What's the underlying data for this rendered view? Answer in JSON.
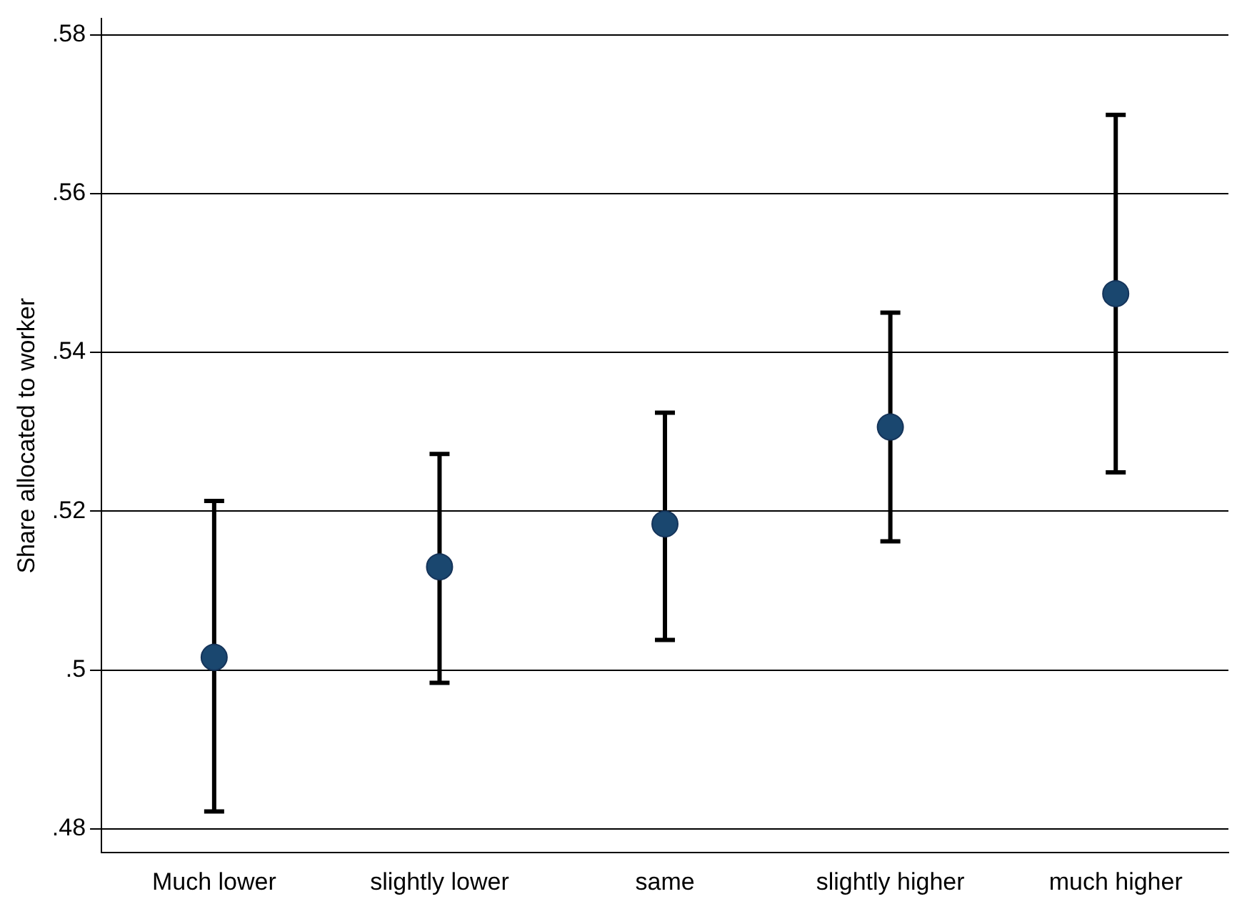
{
  "chart_data": {
    "type": "scatter",
    "ylabel": "Share allocated to worker",
    "categories": [
      "Much lower",
      "slightly lower",
      "same",
      "slightly higher",
      "much higher"
    ],
    "series": [
      {
        "color": "#1a476f",
        "values": [
          0.5016,
          0.513,
          0.5184,
          0.5306,
          0.5474
        ],
        "errors": [
          [
            0.4822,
            0.5213
          ],
          [
            0.4984,
            0.5272
          ],
          [
            0.5038,
            0.5324
          ],
          [
            0.5162,
            0.545
          ],
          [
            0.5249,
            0.5699
          ]
        ]
      }
    ],
    "ylim": [
      0.477,
      0.582
    ],
    "yticks": [
      {
        "value": 0.48,
        "label": ".48"
      },
      {
        "value": 0.5,
        "label": ".5"
      },
      {
        "value": 0.52,
        "label": ".52"
      },
      {
        "value": 0.54,
        "label": ".54"
      },
      {
        "value": 0.56,
        "label": ".56"
      },
      {
        "value": 0.58,
        "label": ".58"
      }
    ],
    "grid": "y",
    "legend": false,
    "marker": "circle"
  }
}
